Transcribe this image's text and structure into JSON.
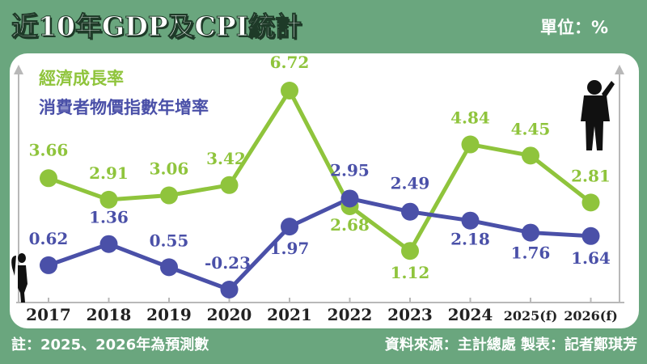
{
  "title": "近10年GDP及CPI統計",
  "unit": "單位：%",
  "footer": {
    "note": "註：2025、2026年為預測數",
    "source": "資料來源：主計總處 製表：記者鄭琪芳"
  },
  "colors": {
    "background": "#6aa67e",
    "gdp": "#8fc43c",
    "cpi": "#4a50a8",
    "plot_bg": "#ffffff"
  },
  "chart_data": {
    "type": "line",
    "title": "近10年GDP及CPI統計",
    "categories": [
      "2017",
      "2018",
      "2019",
      "2020",
      "2021",
      "2022",
      "2023",
      "2024",
      "2025(f)",
      "2026(f)"
    ],
    "series": [
      {
        "name": "經濟成長率",
        "values": [
          3.66,
          2.91,
          3.06,
          3.42,
          6.72,
          2.68,
          1.12,
          4.84,
          4.45,
          2.81
        ]
      },
      {
        "name": "消費者物價指數年增率",
        "values": [
          0.62,
          1.36,
          0.55,
          -0.23,
          1.97,
          2.95,
          2.49,
          2.18,
          1.76,
          1.64
        ]
      }
    ],
    "data_labels": [
      [
        "3.66",
        "2.91",
        "3.06",
        "3.42",
        "6.72",
        "2.68",
        "1.12",
        "4.84",
        "4.45",
        "2.81"
      ],
      [
        "0.62",
        "1.36",
        "0.55",
        "-0.23",
        "1.97",
        "2.95",
        "2.49",
        "2.18",
        "1.76",
        "1.64"
      ]
    ],
    "xlabel": "",
    "ylabel": "",
    "grid": false,
    "legend": "top-left"
  }
}
